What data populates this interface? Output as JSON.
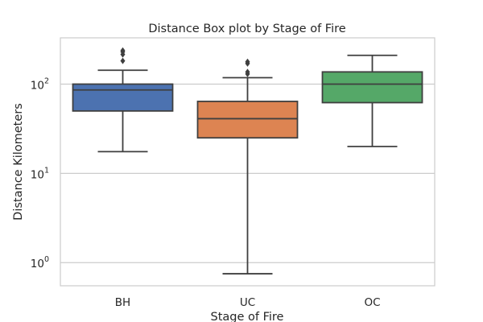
{
  "chart_data": {
    "type": "box",
    "title": "Distance Box plot by Stage of Fire",
    "xlabel": "Stage of Fire",
    "ylabel": "Distance Kilometers",
    "yscale": "log",
    "ylim": [
      0.55,
      330
    ],
    "yticks": [
      {
        "value": 1,
        "base": "10",
        "exp": "0"
      },
      {
        "value": 10,
        "base": "10",
        "exp": "1"
      },
      {
        "value": 100,
        "base": "10",
        "exp": "2"
      }
    ],
    "grid": true,
    "categories": [
      "BH",
      "UC",
      "OC"
    ],
    "boxes": [
      {
        "category": "BH",
        "color": "#4c72b0",
        "whisker_low": 17.5,
        "q1": 50,
        "median": 86,
        "q3": 100,
        "whisker_high": 143,
        "outliers": [
          182,
          215,
          230,
          238
        ]
      },
      {
        "category": "UC",
        "color": "#dd8452",
        "whisker_low": 0.75,
        "q1": 25,
        "median": 41,
        "q3": 64,
        "whisker_high": 118,
        "outliers": [
          130,
          137,
          170,
          178
        ]
      },
      {
        "category": "OC",
        "color": "#55a868",
        "whisker_low": 20,
        "q1": 62,
        "median": 100,
        "q3": 137,
        "whisker_high": 210,
        "outliers": []
      }
    ]
  }
}
